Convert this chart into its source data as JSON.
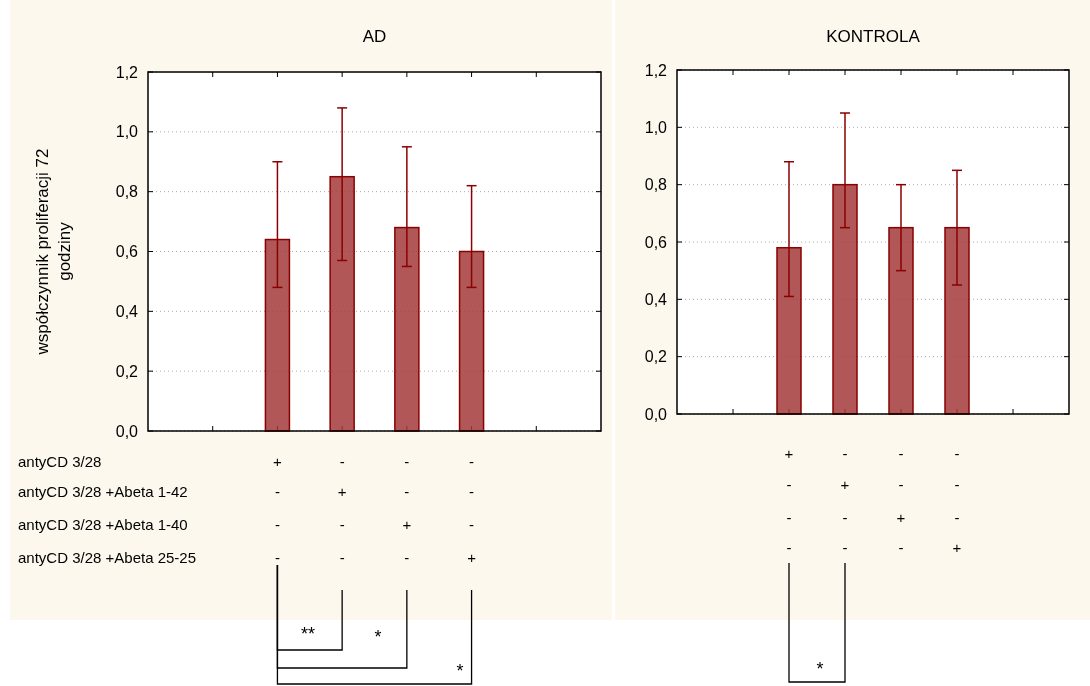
{
  "chart_data": [
    {
      "type": "bar",
      "title": "AD",
      "ylabel": "współczynnik proliferacji 72\ngodziny",
      "categories": [
        null,
        "+\n-\n-\n-",
        "-\n+\n-\n-",
        "-\n-\n+\n-",
        "-\n-\n-\n+",
        null
      ],
      "values": [
        null,
        0.64,
        0.85,
        0.68,
        0.6,
        null
      ],
      "errors": [
        null,
        [
          0.48,
          0.9
        ],
        [
          0.57,
          1.08
        ],
        [
          0.55,
          0.95
        ],
        [
          0.48,
          0.82
        ],
        null
      ],
      "color": "#a33a3a",
      "ylim": [
        0,
        1.2
      ],
      "yticks": [
        {
          "value": 0,
          "label": "0,0"
        },
        {
          "value": 0.2,
          "label": "0,2"
        },
        {
          "value": 0.4,
          "label": "0,4"
        },
        {
          "value": 0.6,
          "label": "0,6"
        },
        {
          "value": 0.8,
          "label": "0,8"
        },
        {
          "value": 1.0,
          "label": "1,0"
        },
        {
          "value": 1.2,
          "label": "1,2"
        }
      ],
      "grid": "y",
      "annotations": [
        "antyCD 3/28",
        "antyCD 3/28 +Abeta 1-42",
        "antyCD 3/28 +Abeta 1-40",
        "antyCD 3/28 +Abeta 25-25",
        "**",
        "*",
        "*"
      ]
    },
    {
      "type": "bar",
      "title": "KONTROLA",
      "categories": [
        null,
        "+\n-\n-\n-",
        "-\n+\n-\n-",
        "-\n-\n+\n-",
        "-\n-\n-\n+",
        null
      ],
      "values": [
        null,
        0.58,
        0.8,
        0.65,
        0.65,
        null
      ],
      "errors": [
        null,
        [
          0.41,
          0.88
        ],
        [
          0.65,
          1.05
        ],
        [
          0.5,
          0.8
        ],
        [
          0.45,
          0.85
        ],
        null
      ],
      "color": "#a33a3a",
      "ylim": [
        0,
        1.2
      ],
      "yticks": [
        {
          "value": 0,
          "label": "0,0"
        },
        {
          "value": 0.2,
          "label": "0,2"
        },
        {
          "value": 0.4,
          "label": "0,4"
        },
        {
          "value": 0.6,
          "label": "0,6"
        },
        {
          "value": 0.8,
          "label": "0,8"
        },
        {
          "value": 1.0,
          "label": "1,0"
        },
        {
          "value": 1.2,
          "label": "1,2"
        }
      ],
      "grid": "y",
      "annotations": [
        "*"
      ]
    }
  ]
}
